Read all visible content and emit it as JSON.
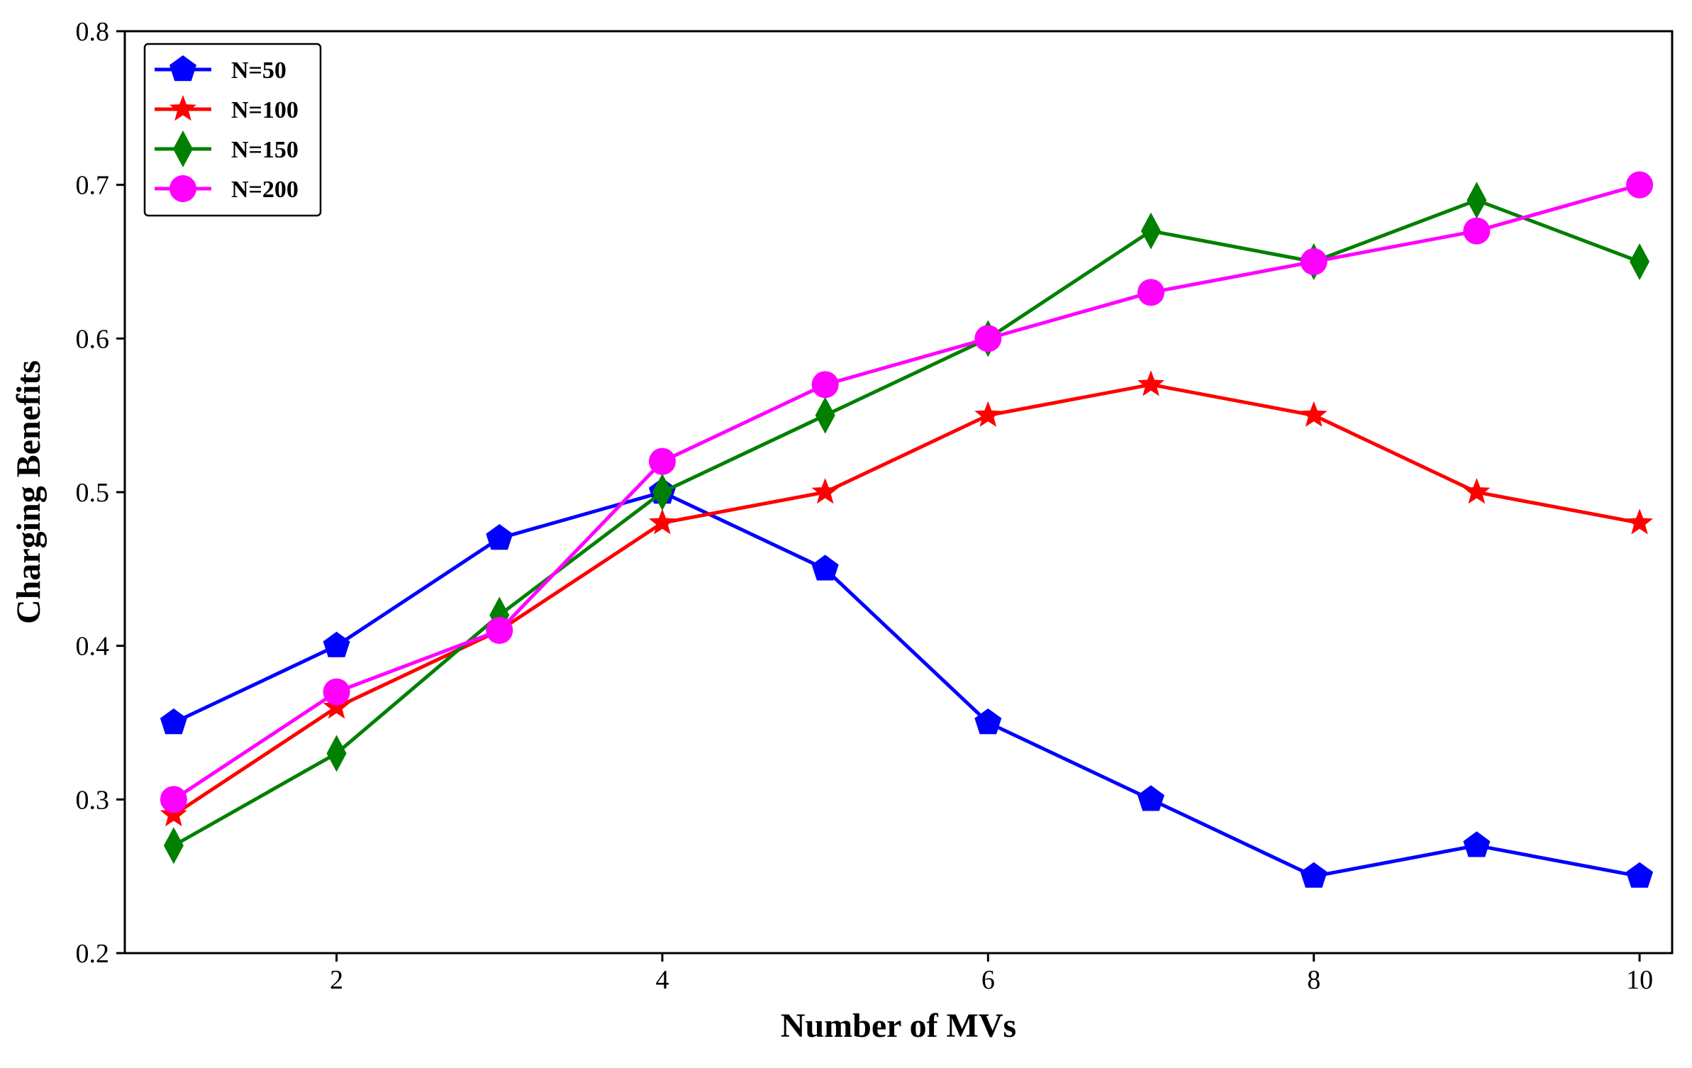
{
  "chart_data": {
    "type": "line",
    "title": "",
    "xlabel": "Number of MVs",
    "ylabel": "Charging Benefits",
    "xlim": [
      0.7,
      10.2
    ],
    "ylim": [
      0.2,
      0.8
    ],
    "x_ticks": [
      2,
      4,
      6,
      8,
      10
    ],
    "y_ticks": [
      0.2,
      0.3,
      0.4,
      0.5,
      0.6,
      0.7,
      0.8
    ],
    "x_tick_labels": [
      "2",
      "4",
      "6",
      "8",
      "10"
    ],
    "y_tick_labels": [
      "0.2",
      "0.3",
      "0.4",
      "0.5",
      "0.6",
      "0.7",
      "0.8"
    ],
    "grid": false,
    "legend_position": "top-left",
    "x": [
      1,
      2,
      3,
      4,
      5,
      6,
      7,
      8,
      9,
      10
    ],
    "series": [
      {
        "name": "N=50",
        "color": "#0000ff",
        "marker": "pentagon",
        "values": [
          0.35,
          0.4,
          0.47,
          0.5,
          0.45,
          0.35,
          0.3,
          0.25,
          0.27,
          0.25
        ]
      },
      {
        "name": "N=100",
        "color": "#ff0000",
        "marker": "star",
        "values": [
          0.29,
          0.36,
          0.41,
          0.48,
          0.5,
          0.55,
          0.57,
          0.55,
          0.5,
          0.48
        ]
      },
      {
        "name": "N=150",
        "color": "#008000",
        "marker": "diamond",
        "values": [
          0.27,
          0.33,
          0.42,
          0.5,
          0.55,
          0.6,
          0.67,
          0.65,
          0.69,
          0.65
        ]
      },
      {
        "name": "N=200",
        "color": "#ff00ff",
        "marker": "circle",
        "values": [
          0.3,
          0.37,
          0.41,
          0.52,
          0.57,
          0.6,
          0.63,
          0.65,
          0.67,
          0.7
        ]
      }
    ]
  }
}
